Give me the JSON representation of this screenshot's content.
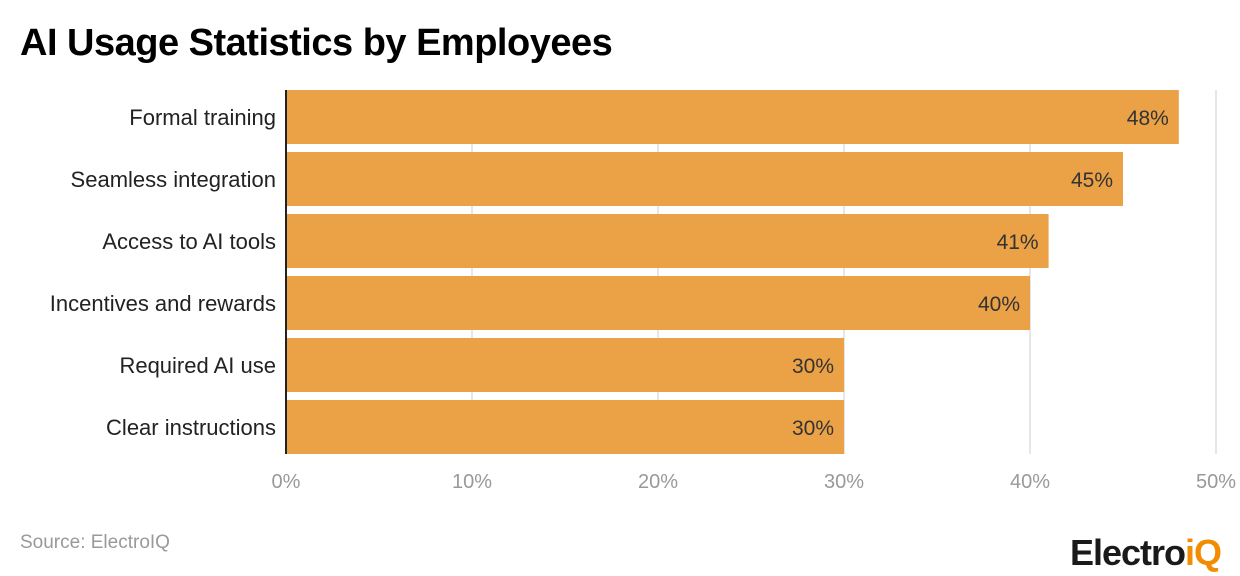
{
  "title": "AI Usage Statistics by Employees",
  "source": "Source: ElectroIQ",
  "logo": {
    "main": "Electro",
    "accent": "iQ",
    "accent_color": "#F28C00"
  },
  "chart_data": {
    "type": "bar",
    "orientation": "horizontal",
    "title": "AI Usage Statistics by Employees",
    "categories": [
      "Formal training",
      "Seamless integration",
      "Access to AI tools",
      "Incentives and rewards",
      "Required AI use",
      "Clear instructions"
    ],
    "values": [
      48,
      45,
      41,
      40,
      30,
      30
    ],
    "data_labels": [
      "48%",
      "45%",
      "41%",
      "40%",
      "30%",
      "30%"
    ],
    "xlim": [
      0,
      50
    ],
    "xticks": [
      0,
      10,
      20,
      30,
      40,
      50
    ],
    "xtick_labels": [
      "0%",
      "10%",
      "20%",
      "30%",
      "40%",
      "50%"
    ],
    "grid": true,
    "bar_color": "#EBA146",
    "xlabel": "",
    "ylabel": ""
  }
}
